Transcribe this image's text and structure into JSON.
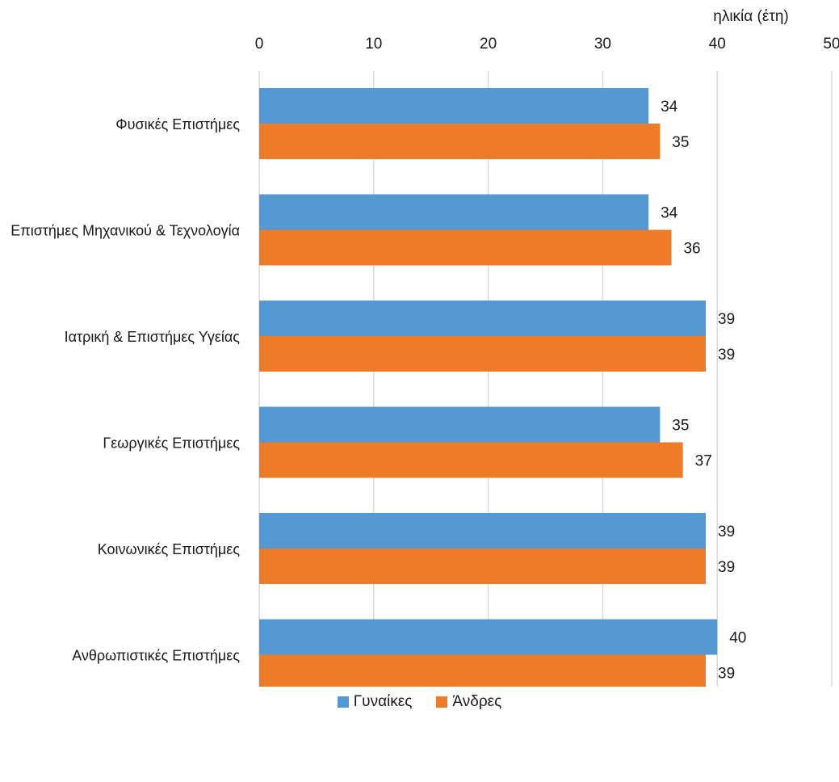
{
  "chart_data": {
    "type": "bar",
    "orientation": "horizontal",
    "title": "",
    "xlabel": "ηλικία (έτη)",
    "ylabel": "",
    "xlim": [
      0,
      50
    ],
    "x_ticks": [
      "0",
      "10",
      "20",
      "30",
      "40",
      "50"
    ],
    "grid": true,
    "legend_position": "bottom",
    "categories": [
      "Φυσικές Επιστήμες",
      "Επιστήμες Μηχανικού & Τεχνολογία",
      "Ιατρική & Επιστήμες Υγείας",
      "Γεωργικές Επιστήμες",
      "Κοινωνικές Επιστήμες",
      "Ανθρωπιστικές Επιστήμες"
    ],
    "series": [
      {
        "name": "Γυναίκες",
        "color": "#5499d4",
        "values": [
          34,
          34,
          39,
          35,
          39,
          40
        ]
      },
      {
        "name": "Άνδρες",
        "color": "#ee7b26",
        "values": [
          35,
          36,
          39,
          37,
          39,
          39
        ]
      }
    ]
  }
}
